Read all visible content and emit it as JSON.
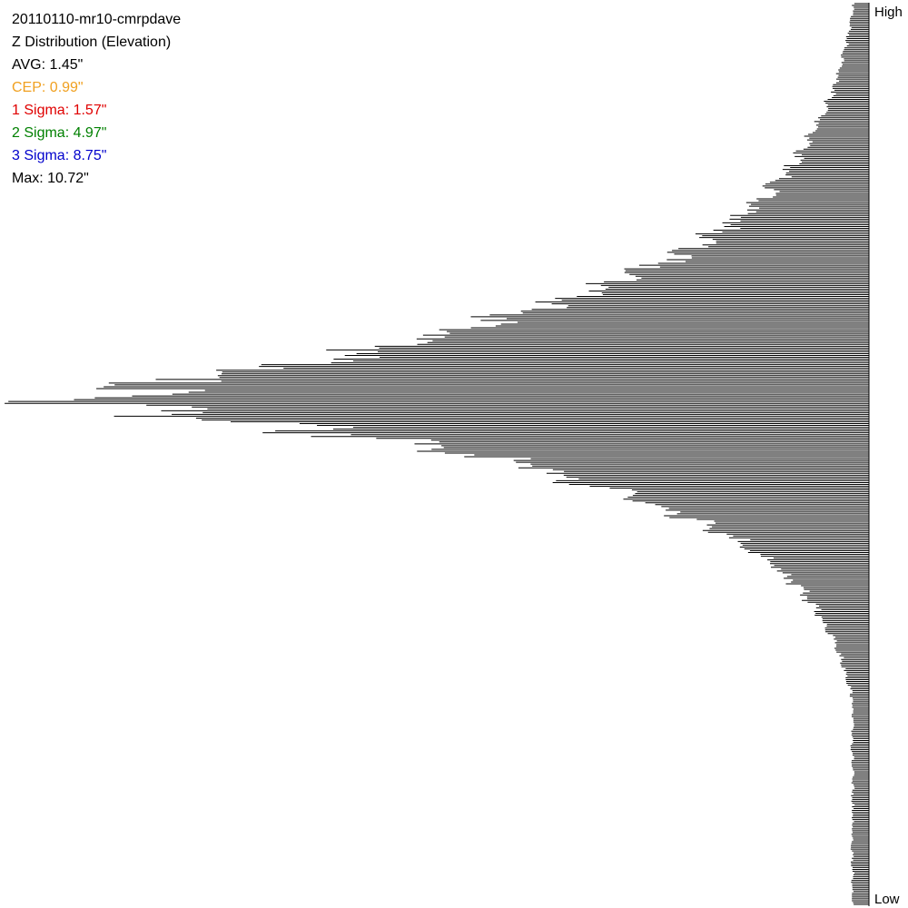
{
  "chart_data": {
    "type": "bar",
    "orientation": "horizontal",
    "bars_grow_from": "right",
    "title": "20110110-mr10-cmrpdave",
    "subtitle": "Z Distribution (Elevation)",
    "stats": [
      {
        "label": "AVG",
        "value": "1.45\"",
        "color": "#000000"
      },
      {
        "label": "CEP",
        "value": "0.99\"",
        "color": "#f0a020"
      },
      {
        "label": "1 Sigma",
        "value": "1.57\"",
        "color": "#e00000"
      },
      {
        "label": "2 Sigma",
        "value": "4.97\"",
        "color": "#008000"
      },
      {
        "label": "3 Sigma",
        "value": "8.75\"",
        "color": "#0000cc"
      },
      {
        "label": "Max",
        "value": "10.72\"",
        "color": "#000000"
      }
    ],
    "axis_top_label": "High",
    "axis_bottom_label": "Low",
    "bin_count": 490,
    "distribution": {
      "peak_fraction": 1.0,
      "peak_position": 0.44,
      "spread_above": 0.11,
      "spread_below": 0.085,
      "tail_upper_fraction": 0.015,
      "tail_lower_fraction": 0.02,
      "noise": 0.08
    },
    "grid": false,
    "legend": "none"
  }
}
